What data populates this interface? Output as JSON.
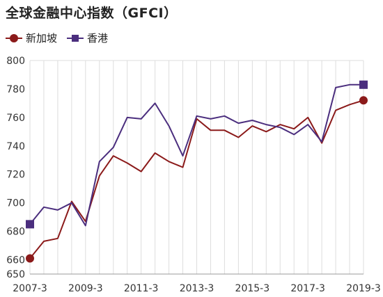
{
  "chart_data": {
    "type": "line",
    "title": "全球金融中心指数（GFCI）",
    "xlabel": "",
    "ylabel": "",
    "ylim": [
      650,
      800
    ],
    "yticks": [
      650,
      660,
      680,
      700,
      720,
      740,
      760,
      780,
      800
    ],
    "grid": "vertical",
    "legend": "top-left",
    "x": [
      "2007-3",
      "2007-9",
      "2008-3",
      "2008-9",
      "2009-3",
      "2009-9",
      "2010-3",
      "2010-9",
      "2011-3",
      "2011-9",
      "2012-3",
      "2012-9",
      "2013-3",
      "2013-9",
      "2014-3",
      "2014-9",
      "2015-3",
      "2015-9",
      "2016-3",
      "2016-9",
      "2017-3",
      "2017-9",
      "2018-3",
      "2018-9",
      "2019-3"
    ],
    "xtick_labels": [
      "2007-3",
      "2009-3",
      "2011-3",
      "2013-3",
      "2015-3",
      "2017-3",
      "2019-3"
    ],
    "series": [
      {
        "name": "新加坡",
        "color": "#8b1a1a",
        "marker": "circle",
        "values": [
          661,
          673,
          675,
          701,
          687,
          719,
          733,
          728,
          722,
          735,
          729,
          725,
          759,
          751,
          751,
          746,
          754,
          750,
          755,
          752,
          760,
          742,
          765,
          769,
          772
        ]
      },
      {
        "name": "香港",
        "color": "#4b2e7e",
        "marker": "square",
        "values": [
          685,
          697,
          695,
          700,
          684,
          729,
          739,
          760,
          759,
          770,
          754,
          733,
          761,
          759,
          761,
          756,
          758,
          755,
          753,
          748,
          755,
          743,
          781,
          783,
          783
        ]
      }
    ]
  }
}
